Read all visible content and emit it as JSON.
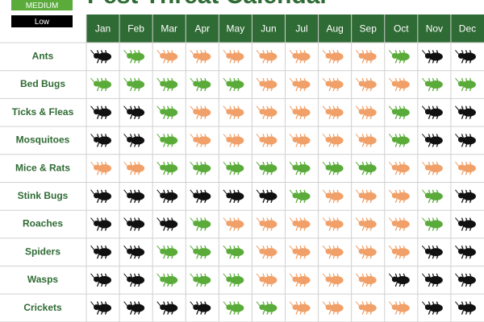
{
  "header": {
    "title": "Pest Threat Calendar"
  },
  "legend": [
    {
      "label": "MEDIUM",
      "color": "#5aab3a"
    },
    {
      "label": "Low",
      "color": "#000000"
    }
  ],
  "table": {
    "header_color": "#2f6b34",
    "months": [
      "Jan",
      "Feb",
      "Mar",
      "Apr",
      "May",
      "Jun",
      "Jul",
      "Aug",
      "Sep",
      "Oct",
      "Nov",
      "Dec"
    ],
    "rows": [
      {
        "name": "Ants",
        "colors": [
          "#111111",
          "#5aab3a",
          "#f0a068",
          "#f0a068",
          "#f0a068",
          "#f0a068",
          "#f0a068",
          "#f0a068",
          "#f0a068",
          "#5aab3a",
          "#111111",
          "#111111"
        ]
      },
      {
        "name": "Bed Bugs",
        "colors": [
          "#5aab3a",
          "#5aab3a",
          "#5aab3a",
          "#5aab3a",
          "#5aab3a",
          "#f0a068",
          "#f0a068",
          "#f0a068",
          "#f0a068",
          "#f0a068",
          "#5aab3a",
          "#5aab3a"
        ]
      },
      {
        "name": "Ticks & Fleas",
        "colors": [
          "#111111",
          "#111111",
          "#5aab3a",
          "#f0a068",
          "#f0a068",
          "#f0a068",
          "#f0a068",
          "#f0a068",
          "#f0a068",
          "#5aab3a",
          "#111111",
          "#111111"
        ]
      },
      {
        "name": "Mosquitoes",
        "colors": [
          "#111111",
          "#111111",
          "#5aab3a",
          "#f0a068",
          "#f0a068",
          "#f0a068",
          "#f0a068",
          "#f0a068",
          "#f0a068",
          "#5aab3a",
          "#111111",
          "#111111"
        ]
      },
      {
        "name": "Mice & Rats",
        "colors": [
          "#f0a068",
          "#f0a068",
          "#5aab3a",
          "#5aab3a",
          "#5aab3a",
          "#5aab3a",
          "#5aab3a",
          "#5aab3a",
          "#5aab3a",
          "#f0a068",
          "#f0a068",
          "#f0a068"
        ]
      },
      {
        "name": "Stink Bugs",
        "colors": [
          "#111111",
          "#111111",
          "#111111",
          "#111111",
          "#111111",
          "#111111",
          "#5aab3a",
          "#f0a068",
          "#f0a068",
          "#f0a068",
          "#5aab3a",
          "#111111"
        ]
      },
      {
        "name": "Roaches",
        "colors": [
          "#111111",
          "#111111",
          "#111111",
          "#5aab3a",
          "#f0a068",
          "#f0a068",
          "#f0a068",
          "#f0a068",
          "#f0a068",
          "#f0a068",
          "#5aab3a",
          "#111111"
        ]
      },
      {
        "name": "Spiders",
        "colors": [
          "#111111",
          "#111111",
          "#5aab3a",
          "#5aab3a",
          "#5aab3a",
          "#f0a068",
          "#f0a068",
          "#f0a068",
          "#f0a068",
          "#f0a068",
          "#111111",
          "#111111"
        ]
      },
      {
        "name": "Wasps",
        "colors": [
          "#111111",
          "#111111",
          "#5aab3a",
          "#5aab3a",
          "#5aab3a",
          "#f0a068",
          "#f0a068",
          "#f0a068",
          "#f0a068",
          "#111111",
          "#111111",
          "#111111"
        ]
      },
      {
        "name": "Crickets",
        "colors": [
          "#111111",
          "#111111",
          "#111111",
          "#111111",
          "#5aab3a",
          "#5aab3a",
          "#f0a068",
          "#f0a068",
          "#f0a068",
          "#f0a068",
          "#111111",
          "#111111"
        ]
      }
    ]
  }
}
